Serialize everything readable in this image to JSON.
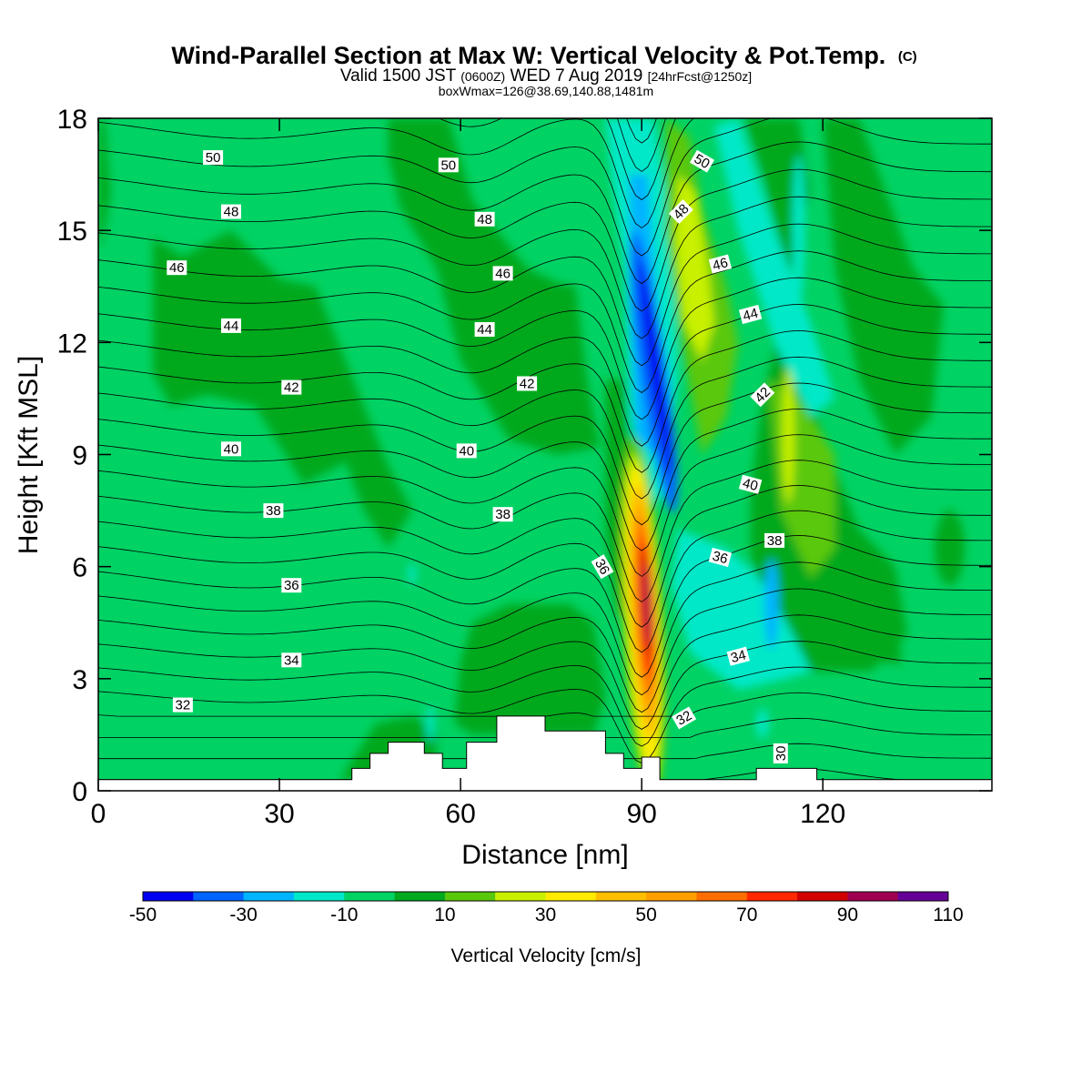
{
  "title": {
    "main": "Wind-Parallel Section at Max W: Vertical Velocity & Pot.Temp.",
    "copyright": "(C)",
    "valid_a": "Valid 1500 JST",
    "valid_b": "(0600Z)",
    "valid_c": "WED 7 Aug 2019",
    "valid_d": "[24hrFcst@1250z]",
    "boxinfo": "boxWmax=126@38.69,140.88,1481m"
  },
  "chart_data": {
    "type": "heatmap",
    "xlabel": "Distance [nm]",
    "ylabel": "Height [Kft MSL]",
    "xlim": [
      0,
      148
    ],
    "ylim": [
      0,
      18
    ],
    "xticks": [
      0,
      30,
      60,
      90,
      120
    ],
    "yticks": [
      0,
      3,
      6,
      9,
      12,
      15,
      18
    ],
    "colorbar": {
      "label": "Vertical Velocity [cm/s]",
      "levels": [
        -50,
        -40,
        -30,
        -20,
        -10,
        0,
        10,
        20,
        30,
        40,
        50,
        60,
        70,
        80,
        90,
        100,
        110
      ],
      "tick_labels": [
        "-50",
        "-30",
        "-10",
        "10",
        "30",
        "50",
        "70",
        "90",
        "110"
      ],
      "colors": [
        "#0000f0",
        "#0064ff",
        "#00b4ff",
        "#00e8c8",
        "#00d264",
        "#00a91e",
        "#5ac80a",
        "#c8f000",
        "#ffeb00",
        "#ffbe00",
        "#ffa000",
        "#ff6e00",
        "#ff2800",
        "#d20000",
        "#a00050",
        "#640096"
      ]
    },
    "isentropes": {
      "label": "Potential Temperature",
      "levels": [
        30,
        32,
        34,
        36,
        38,
        40,
        42,
        44,
        46,
        48,
        50
      ],
      "labels": [
        {
          "text": "50",
          "x": 19,
          "y": 16.95,
          "rot": 0
        },
        {
          "text": "48",
          "x": 22,
          "y": 15.5,
          "rot": 0
        },
        {
          "text": "46",
          "x": 13,
          "y": 14.0,
          "rot": 0
        },
        {
          "text": "44",
          "x": 22,
          "y": 12.45,
          "rot": 0
        },
        {
          "text": "42",
          "x": 32,
          "y": 10.8,
          "rot": 0
        },
        {
          "text": "40",
          "x": 22,
          "y": 9.15,
          "rot": 0
        },
        {
          "text": "38",
          "x": 29,
          "y": 7.5,
          "rot": 0
        },
        {
          "text": "36",
          "x": 32,
          "y": 5.5,
          "rot": 0
        },
        {
          "text": "34",
          "x": 32,
          "y": 3.5,
          "rot": 0
        },
        {
          "text": "32",
          "x": 14,
          "y": 2.3,
          "rot": 0
        },
        {
          "text": "50",
          "x": 58,
          "y": 16.75,
          "rot": 0
        },
        {
          "text": "48",
          "x": 64,
          "y": 15.3,
          "rot": 0
        },
        {
          "text": "46",
          "x": 67,
          "y": 13.85,
          "rot": 0
        },
        {
          "text": "44",
          "x": 64,
          "y": 12.35,
          "rot": 0
        },
        {
          "text": "42",
          "x": 71,
          "y": 10.9,
          "rot": 0
        },
        {
          "text": "40",
          "x": 61,
          "y": 9.1,
          "rot": 0
        },
        {
          "text": "38",
          "x": 67,
          "y": 7.4,
          "rot": 0
        },
        {
          "text": "36",
          "x": 83.5,
          "y": 6.0,
          "rot": 60
        },
        {
          "text": "50",
          "x": 100,
          "y": 16.85,
          "rot": 30
        },
        {
          "text": "48",
          "x": 96.5,
          "y": 15.5,
          "rot": -45
        },
        {
          "text": "46",
          "x": 103,
          "y": 14.1,
          "rot": -15
        },
        {
          "text": "44",
          "x": 108,
          "y": 12.75,
          "rot": -15
        },
        {
          "text": "42",
          "x": 110,
          "y": 10.6,
          "rot": -45
        },
        {
          "text": "40",
          "x": 108,
          "y": 8.2,
          "rot": 15
        },
        {
          "text": "38",
          "x": 112,
          "y": 6.7,
          "rot": 0
        },
        {
          "text": "36",
          "x": 103,
          "y": 6.25,
          "rot": 15
        },
        {
          "text": "34",
          "x": 106,
          "y": 3.6,
          "rot": -15
        },
        {
          "text": "32",
          "x": 97,
          "y": 1.95,
          "rot": -30
        },
        {
          "text": "30",
          "x": 113,
          "y": 1.0,
          "rot": -90
        }
      ]
    },
    "terrain": {
      "x": [
        0,
        42,
        42,
        45,
        45,
        48,
        48,
        54,
        54,
        57,
        57,
        61,
        61,
        66,
        66,
        74,
        74,
        84,
        84,
        87,
        87,
        90,
        90,
        93,
        93,
        109,
        109,
        119,
        119,
        148
      ],
      "y": [
        0.3,
        0.3,
        0.6,
        0.6,
        1.0,
        1.0,
        1.3,
        1.3,
        1.0,
        1.0,
        0.6,
        0.6,
        1.3,
        1.3,
        2.0,
        2.0,
        1.6,
        1.6,
        1.0,
        1.0,
        0.6,
        0.6,
        0.9,
        0.9,
        0.3,
        0.3,
        0.6,
        0.6,
        0.3,
        0.3
      ]
    }
  }
}
